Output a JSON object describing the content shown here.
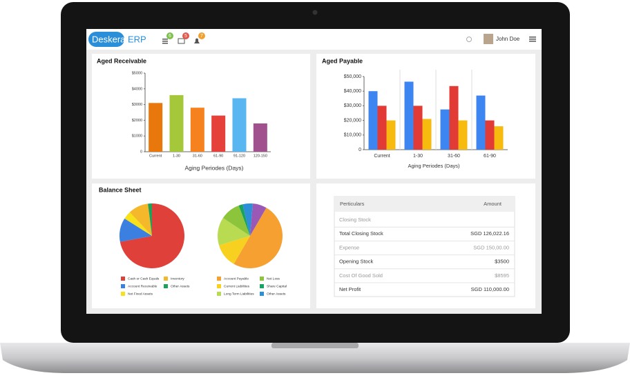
{
  "header": {
    "logo": "Deskera",
    "logo_suffix": "ERP",
    "badges": [
      "6",
      "5",
      "7"
    ],
    "user": "John Doe"
  },
  "chart_data": [
    {
      "type": "bar",
      "title": "Aged Receivable",
      "x_label": "Aging Periodes (Days)",
      "categories": [
        "Current",
        "1-30",
        "31-60",
        "61-90",
        "91-120",
        "120-150"
      ],
      "values": [
        3100,
        3600,
        2800,
        2300,
        3400,
        1800
      ],
      "colors": [
        "#e8780c",
        "#a5c83a",
        "#f5821f",
        "#e6403a",
        "#5ab6f0",
        "#a1528e"
      ],
      "ylim": [
        0,
        5000
      ],
      "yticks": [
        0,
        {
          "value": 1000,
          "label": "$1000"
        },
        {
          "value": 2000,
          "label": "$2000"
        },
        {
          "value": 3000,
          "label": "$3000"
        },
        {
          "value": 4000,
          "label": "$4000"
        },
        {
          "value": 5000,
          "label": "$5000"
        }
      ]
    },
    {
      "type": "grouped-bar",
      "title": "Aged Payable",
      "x_label": "Aging Periodes (Days)",
      "categories": [
        "Current",
        "1-30",
        "31-60",
        "61-90"
      ],
      "series": [
        {
          "color": "#3d85f0",
          "values": [
            40000,
            46500,
            27500,
            37000
          ]
        },
        {
          "color": "#e23b35",
          "values": [
            30000,
            30000,
            43500,
            20000
          ]
        },
        {
          "color": "#f7bb0f",
          "values": [
            20000,
            21000,
            20000,
            16000
          ]
        }
      ],
      "ylim": [
        0,
        50000
      ],
      "yticks": [
        0,
        {
          "value": 10000,
          "label": "$10,000"
        },
        {
          "value": 20000,
          "label": "$20,000"
        },
        {
          "value": 30000,
          "label": "$30,000"
        },
        {
          "value": 40000,
          "label": "$40,000"
        },
        {
          "value": 50000,
          "label": "$50,000"
        }
      ]
    },
    {
      "type": "pie",
      "title": "Balance Sheet",
      "labels": [
        "Cash or Cash Equals",
        "Account Receivable",
        "Net Fixed Assets",
        "Inventory",
        "Other Assets"
      ],
      "values": [
        72,
        12,
        4,
        10,
        2
      ],
      "colors": [
        "#e0403a",
        "#3b7fe0",
        "#f7e11a",
        "#f5b82a",
        "#21a05a"
      ]
    },
    {
      "type": "pie",
      "labels": [
        "Account Payable",
        "Current Liabilities",
        "Long Term Liabilities",
        "Net Loss",
        "Share Capital",
        "Other Assets",
        null
      ],
      "values": [
        50,
        12,
        14,
        10,
        2,
        5,
        7
      ],
      "colors": [
        "#f5a030",
        "#f8d020",
        "#b8db52",
        "#8cc43c",
        "#1aa260",
        "#2d8fd5",
        "#9b59b6"
      ]
    }
  ],
  "table": {
    "header": [
      "Perticulars",
      "Amount"
    ],
    "rows": [
      [
        "Closing Stock",
        null
      ],
      [
        "Total Closing Stock",
        "SGD 126,022.16"
      ],
      [
        "Expense",
        "SGD 150,00.00"
      ],
      [
        "Opening Stock",
        "$3500"
      ],
      [
        "Cost Of Good Sold",
        "$8595"
      ],
      [
        "Net Profit",
        "SGD 110,000.00"
      ]
    ]
  }
}
